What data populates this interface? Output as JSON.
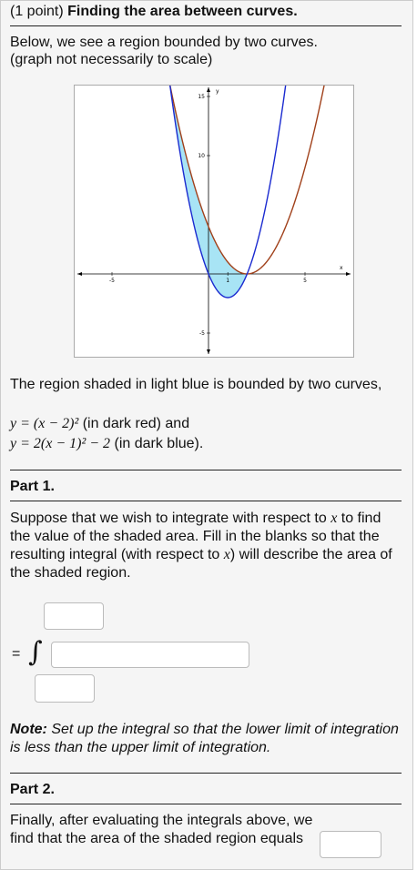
{
  "header": {
    "points": "(1 point)",
    "title": "Finding the area between curves."
  },
  "intro": {
    "line1": "Below, we see a region bounded by two curves.",
    "line2": "(graph not necessarily to scale)"
  },
  "graph": {
    "x_label": "x",
    "y_label": "y",
    "y_tick_labels": [
      "15",
      "10",
      "-5"
    ],
    "x_tick_labels": [
      "-5",
      "1",
      "5"
    ]
  },
  "description": {
    "text": "The region shaded in light blue is bounded by two curves,",
    "curve1": {
      "equation": "y = (x − 2)²",
      "note": "(in dark red) and"
    },
    "curve2": {
      "equation": "y = 2(x − 1)² − 2",
      "note": "(in dark blue)."
    }
  },
  "part1": {
    "heading": "Part 1.",
    "text_a": "Suppose that we wish to integrate with respect to",
    "var_a": "x",
    "text_b": "to find the value of the shaded area. Fill in the blanks so that the resulting integral (with respect to",
    "var_b": "x",
    "text_c": ") will describe the area of the shaded region.",
    "equals": "=",
    "integral": "∫",
    "note_label": "Note:",
    "note_text": "Set up the integral so that the lower limit of integration is less than the upper limit of integration."
  },
  "part2": {
    "heading": "Part 2.",
    "text": "Finally, after evaluating the integrals above, we find that the area of the shaded region equals"
  }
}
